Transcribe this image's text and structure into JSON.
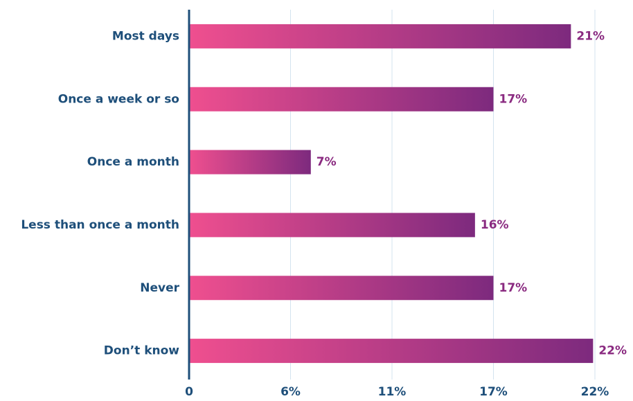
{
  "chart_data": {
    "type": "barh",
    "categories": [
      "Most days",
      "Once a week or so",
      "Once a month",
      "Less than once a month",
      "Never",
      "Don’t know"
    ],
    "values": [
      20.7,
      16.5,
      6.6,
      15.5,
      16.5,
      21.9
    ],
    "value_labels": [
      "21%",
      "17%",
      "7%",
      "16%",
      "17%",
      "22%"
    ],
    "colors": [
      "#ef4f8f",
      "#7d2a7e"
    ],
    "xlim": [
      0,
      22
    ],
    "xticks": [
      0,
      {
        "value": 5.5,
        "label": "6%"
      },
      {
        "value": 11,
        "label": "11%"
      },
      {
        "value": 16.5,
        "label": "17%"
      },
      {
        "value": 22,
        "label": "22%"
      }
    ],
    "grid": true
  }
}
